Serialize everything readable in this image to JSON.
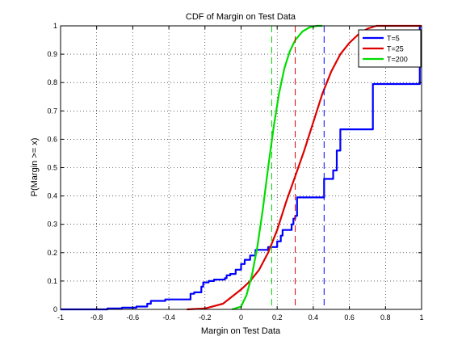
{
  "chart_data": {
    "type": "line",
    "title": "CDF of Margin on Test Data",
    "xlabel": "Margin on Test Data",
    "ylabel": "P(Margin >= x)",
    "xlim": [
      -1,
      1
    ],
    "ylim": [
      0,
      1
    ],
    "x_ticks": [
      -1,
      -0.8,
      -0.6,
      -0.4,
      -0.2,
      0,
      0.2,
      0.4,
      0.6,
      0.8,
      1
    ],
    "x_tick_labels": [
      "-1",
      "-0.8",
      "-0.6",
      "-0.4",
      "-0.2",
      "0",
      "0.2",
      "0.4",
      "0.6",
      "0.8",
      "1"
    ],
    "y_ticks": [
      0,
      0.1,
      0.2,
      0.3,
      0.4,
      0.5,
      0.6,
      0.7,
      0.8,
      0.9,
      1
    ],
    "y_tick_labels": [
      "0",
      "0.1",
      "0.2",
      "0.3",
      "0.4",
      "0.5",
      "0.6",
      "0.7",
      "0.8",
      "0.9",
      "1"
    ],
    "grid": true,
    "legend_position": "top-right",
    "series": [
      {
        "name": "T=5",
        "color": "#0000ff",
        "style": "step",
        "mean_margin": 0.46,
        "points": [
          [
            -1,
            0
          ],
          [
            -0.74,
            0.003
          ],
          [
            -0.66,
            0.006
          ],
          [
            -0.58,
            0.01
          ],
          [
            -0.52,
            0.02
          ],
          [
            -0.5,
            0.03
          ],
          [
            -0.42,
            0.035
          ],
          [
            -0.28,
            0.055
          ],
          [
            -0.26,
            0.06
          ],
          [
            -0.22,
            0.08
          ],
          [
            -0.21,
            0.095
          ],
          [
            -0.18,
            0.1
          ],
          [
            -0.15,
            0.105
          ],
          [
            -0.09,
            0.11
          ],
          [
            -0.08,
            0.12
          ],
          [
            -0.06,
            0.125
          ],
          [
            -0.03,
            0.14
          ],
          [
            0.0,
            0.16
          ],
          [
            0.02,
            0.175
          ],
          [
            0.05,
            0.19
          ],
          [
            0.08,
            0.21
          ],
          [
            0.15,
            0.22
          ],
          [
            0.2,
            0.24
          ],
          [
            0.22,
            0.26
          ],
          [
            0.23,
            0.28
          ],
          [
            0.28,
            0.3
          ],
          [
            0.29,
            0.32
          ],
          [
            0.3,
            0.33
          ],
          [
            0.31,
            0.395
          ],
          [
            0.46,
            0.46
          ],
          [
            0.51,
            0.49
          ],
          [
            0.53,
            0.56
          ],
          [
            0.55,
            0.635
          ],
          [
            0.73,
            0.795
          ],
          [
            0.99,
            1.0
          ]
        ]
      },
      {
        "name": "T=25",
        "color": "#dd0000",
        "style": "line",
        "mean_margin": 0.3,
        "points": [
          [
            -0.3,
            0
          ],
          [
            -0.2,
            0.003
          ],
          [
            -0.1,
            0.02
          ],
          [
            0.0,
            0.07
          ],
          [
            0.05,
            0.1
          ],
          [
            0.1,
            0.14
          ],
          [
            0.15,
            0.2
          ],
          [
            0.2,
            0.28
          ],
          [
            0.25,
            0.38
          ],
          [
            0.3,
            0.47
          ],
          [
            0.35,
            0.56
          ],
          [
            0.4,
            0.66
          ],
          [
            0.45,
            0.76
          ],
          [
            0.5,
            0.84
          ],
          [
            0.55,
            0.9
          ],
          [
            0.6,
            0.94
          ],
          [
            0.65,
            0.97
          ],
          [
            0.7,
            0.99
          ],
          [
            0.75,
            1.0
          ],
          [
            1.0,
            1.0
          ]
        ]
      },
      {
        "name": "T=200",
        "color": "#00dd00",
        "style": "line",
        "mean_margin": 0.17,
        "points": [
          [
            -0.05,
            0
          ],
          [
            0.0,
            0.01
          ],
          [
            0.03,
            0.05
          ],
          [
            0.06,
            0.12
          ],
          [
            0.09,
            0.22
          ],
          [
            0.12,
            0.35
          ],
          [
            0.15,
            0.5
          ],
          [
            0.18,
            0.64
          ],
          [
            0.21,
            0.76
          ],
          [
            0.24,
            0.85
          ],
          [
            0.27,
            0.91
          ],
          [
            0.3,
            0.95
          ],
          [
            0.34,
            0.98
          ],
          [
            0.38,
            0.995
          ],
          [
            0.42,
            1.0
          ],
          [
            0.45,
            1.0
          ]
        ]
      }
    ]
  }
}
